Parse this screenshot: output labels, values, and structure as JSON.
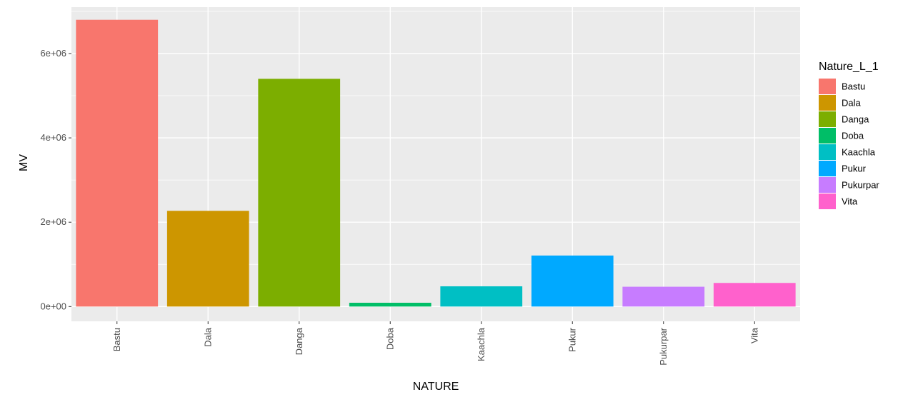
{
  "chart_data": {
    "type": "bar",
    "xlabel": "NATURE",
    "ylabel": "MV",
    "categories": [
      "Bastu",
      "Dala",
      "Danga",
      "Doba",
      "Kaachla",
      "Pukur",
      "Pukurpar",
      "Vita"
    ],
    "values": [
      6800000,
      2270000,
      5400000,
      90000,
      480000,
      1210000,
      470000,
      560000
    ],
    "colors": [
      "#F8766D",
      "#CD9600",
      "#7CAE00",
      "#00BE67",
      "#00BFC4",
      "#00A9FF",
      "#C77CFF",
      "#FF61CC"
    ],
    "ylim": [
      -350000,
      7100000
    ],
    "yticks": [
      0,
      2000000,
      4000000,
      6000000
    ],
    "ytick_labels": [
      "0e+00",
      "2e+06",
      "4e+06",
      "6e+06"
    ],
    "legend": {
      "title": "Nature_L_1",
      "position": "right",
      "entries": [
        "Bastu",
        "Dala",
        "Danga",
        "Doba",
        "Kaachla",
        "Pukur",
        "Pukurpar",
        "Vita"
      ]
    },
    "grid": true,
    "panel_background": "#EBEBEB",
    "grid_color": "#FFFFFF"
  }
}
